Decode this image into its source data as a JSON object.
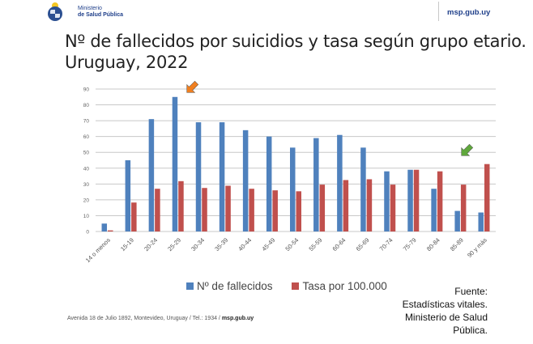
{
  "header": {
    "org_line1": "Ministerio",
    "org_line2": "de Salud Pública",
    "site": "msp.gub.uy"
  },
  "title_line1": "Nº de fallecidos por suicidios y tasa según grupo etario.",
  "title_line2": "Uruguay, 2022",
  "legend": {
    "series1": "Nº de fallecidos",
    "series2": "Tasa por 100.000"
  },
  "source": {
    "line1": "Fuente:",
    "line2": "Estadísticas vitales.",
    "line3": "Ministerio de Salud",
    "line4": "Pública."
  },
  "footer": {
    "address": "Avenida 18 de Julio 1892, Montevideo, Uruguay / Tel.: 1934 / ",
    "site": "msp.gub.uy"
  },
  "colors": {
    "series1": "#4f81bd",
    "series2": "#c0504d",
    "arrow_highlight_1": "#f07f1f",
    "arrow_highlight_2": "#5fa83c",
    "brand": "#1f3f8a"
  },
  "chart_data": {
    "type": "bar",
    "title": "Nº de fallecidos por suicidios y tasa según grupo etario. Uruguay, 2022",
    "xlabel": "",
    "ylabel": "",
    "ylim": [
      0,
      90
    ],
    "yticks": [
      0,
      10,
      20,
      30,
      40,
      50,
      60,
      70,
      80,
      90
    ],
    "grid": true,
    "legend_position": "bottom",
    "categories": [
      "14 o menos",
      "15-19",
      "20-24",
      "25-29",
      "30-34",
      "35-39",
      "40-44",
      "45-49",
      "50-54",
      "55-59",
      "60-64",
      "65-69",
      "70-74",
      "75-79",
      "80-84",
      "85-89",
      "90 y más"
    ],
    "series": [
      {
        "name": "Nº de fallecidos",
        "values": [
          5,
          45,
          71,
          85,
          69,
          69,
          64,
          60,
          53,
          59,
          61,
          53,
          38,
          39,
          27,
          13,
          12
        ]
      },
      {
        "name": "Tasa por 100.000",
        "values": [
          0.7,
          18.3,
          27,
          31.8,
          27.5,
          28.9,
          27,
          26,
          25.4,
          29.6,
          32.5,
          33,
          29.6,
          39,
          38,
          29.6,
          42.6
        ]
      }
    ],
    "annotations": [
      {
        "type": "arrow",
        "color": "orange",
        "target": "25-29"
      },
      {
        "type": "arrow",
        "color": "green",
        "target": "85-89"
      }
    ]
  }
}
